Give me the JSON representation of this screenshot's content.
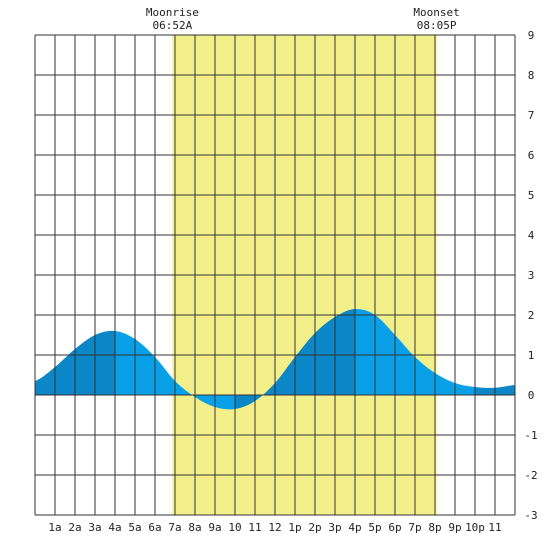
{
  "chart_data": {
    "type": "area",
    "x_tick_labels": [
      "1a",
      "2a",
      "3a",
      "4a",
      "5a",
      "6a",
      "7a",
      "8a",
      "9a",
      "10",
      "11",
      "12",
      "1p",
      "2p",
      "3p",
      "4p",
      "5p",
      "6p",
      "7p",
      "8p",
      "9p",
      "10p",
      "11"
    ],
    "y_ticks": [
      9,
      8,
      7,
      6,
      5,
      4,
      3,
      2,
      1,
      0,
      -1,
      -2,
      -3
    ],
    "xlim": [
      0,
      24
    ],
    "ylim": [
      -3,
      9
    ],
    "grid": true,
    "moon_events": [
      {
        "name": "Moonrise",
        "time": "06:52A",
        "hour": 6.87
      },
      {
        "name": "Moonset",
        "time": "08:05P",
        "hour": 20.08
      }
    ],
    "series": [
      {
        "x": [
          0,
          1,
          2,
          3,
          4,
          5,
          6,
          7,
          8,
          9,
          10,
          11,
          12,
          13,
          14,
          15,
          16,
          17,
          18,
          19,
          20,
          21,
          22,
          23,
          24
        ],
        "values": [
          0.35,
          0.7,
          1.15,
          1.5,
          1.6,
          1.4,
          0.95,
          0.35,
          -0.05,
          -0.3,
          -0.35,
          -0.15,
          0.3,
          0.95,
          1.55,
          1.95,
          2.15,
          2.0,
          1.5,
          0.95,
          0.55,
          0.3,
          0.2,
          0.18,
          0.25
        ]
      }
    ],
    "colors": {
      "moon_band": "#f3f08c",
      "tide_light": "#0aa0e8",
      "tide_dark": "#0b86c6",
      "grid": "#333333"
    }
  }
}
